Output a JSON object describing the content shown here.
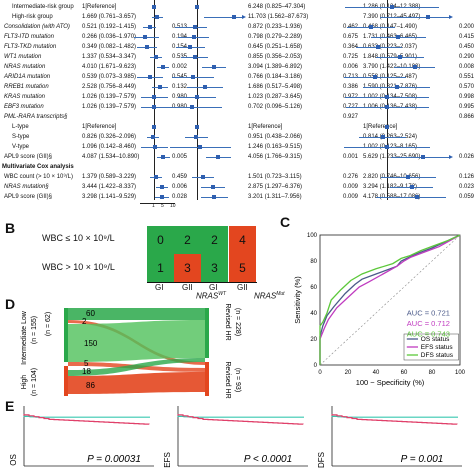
{
  "panel_a": {
    "rows": [
      {
        "label": "Intermediate-risk group",
        "c1": "1[Reference]",
        "p1": "",
        "c2": "6.248 (0.825–47.304)",
        "p2": "",
        "c3": "1.286 (0.134–12.388)",
        "p3": "",
        "style": "ind"
      },
      {
        "label": "High-risk group",
        "c1": "1.669 (0.761–3.657)",
        "p1": "",
        "c2": "11.703 (1.562–87.673)",
        "p2": "",
        "c3": "7.390 (0.712–45.497)",
        "p3": "",
        "style": "ind"
      },
      {
        "label": "Consolidation (with ATO)",
        "c1": "0.521 (0.192–1.415)",
        "p1": "0.513",
        "c2": "0.872 (0.233–1.936)",
        "p2": "0.462",
        "c3": "0.468 (0.147–1.490)",
        "p3": "0.200",
        "style": "it"
      },
      {
        "label": "FLT3-ITD mutation",
        "c1": "0.266 (0.036–1.970)",
        "p1": "0.194",
        "c2": "0.798 (0.279–2.289)",
        "p2": "0.675",
        "c3": "1.731 (0.463–6.465)",
        "p3": "0.415",
        "style": "it"
      },
      {
        "label": "FLT3-TKD mutation",
        "c1": "0.349 (0.082–1.482)",
        "p1": "0.154",
        "c2": "0.645 (0.251–1.658)",
        "p2": "0.364",
        "c3": "0.633 (0.223–2.037)",
        "p3": "0.450",
        "style": "it"
      },
      {
        "label": "WT1 mutation",
        "c1": "1.337 (0.534–3.347)",
        "p1": "0.535",
        "c2": "0.855 (0.356–2.053)",
        "p2": "0.725",
        "c3": "1.848 (0.579–5.901)",
        "p3": "0.290",
        "style": "it"
      },
      {
        "label": "NRAS mutation",
        "c1": "4.010 (1.671–9.623)",
        "p1": "0.002",
        "c2": "3.094 (1.389–6.892)",
        "p2": "0.006",
        "c3": "3.790 (1.422–10.100)",
        "p3": "0.008",
        "style": "it"
      },
      {
        "label": "ARID1A mutation",
        "c1": "0.539 (0.073–3.985)",
        "p1": "0.545",
        "c2": "0.766 (0.184–3.186)",
        "p2": "0.713",
        "c3": "0.558 (0.125–2.487)",
        "p3": "0.551",
        "style": "it"
      },
      {
        "label": "RREB1 mutation",
        "c1": "2.528 (0.756–8.449)",
        "p1": "0.132",
        "c2": "1.686 (0.517–5.498)",
        "p2": "0.386",
        "c3": "1.590 (0.321–7.876)",
        "p3": "0.570",
        "style": "it"
      },
      {
        "label": "KRAS mutation",
        "c1": "1.026 (0.139–7.579)",
        "p1": "0.980",
        "c2": "1.023 (0.287–3.645)",
        "p2": "0.972",
        "c3": "1.002 (0.134–7.508)",
        "p3": "0.998",
        "style": "it"
      },
      {
        "label": "EBF3 mutation",
        "c1": "1.026 (0.139–7.579)",
        "p1": "0.980",
        "c2": "0.702 (0.096–5.126)",
        "p2": "0.727",
        "c3": "1.006 (0.136–7.438)",
        "p3": "0.995",
        "style": "it"
      },
      {
        "label": "PML-RARA transcripts§",
        "c1": "",
        "p1": "",
        "c2": "",
        "p2": "0.927",
        "c3": "",
        "p3": "0.866",
        "style": "it"
      },
      {
        "label": "L-type",
        "c1": "1[Reference]",
        "p1": "",
        "c2": "1[Reference]",
        "p2": "",
        "c3": "1[Reference]",
        "p3": "",
        "style": "ind"
      },
      {
        "label": "S-type",
        "c1": "0.826 (0.326–2.096)",
        "p1": "",
        "c2": "0.951 (0.438–2.066)",
        "p2": "",
        "c3": "0.814 (0.263–2.524)",
        "p3": "",
        "style": "ind"
      },
      {
        "label": "V-type",
        "c1": "1.096 (0.142–8.460)",
        "p1": "",
        "c2": "1.246 (0.163–9.515)",
        "p2": "",
        "c3": "1.002 (0.123–8.165)",
        "p3": "",
        "style": "ind"
      },
      {
        "label": "APL9 score (GII)§",
        "c1": "4.087 (1.534–10.890)",
        "p1": "0.005",
        "c2": "4.056 (1.766–9.315)",
        "p2": "0.001",
        "c3": "5.629 (1.233–25.690)",
        "p3": "0.026",
        "style": ""
      },
      {
        "label": "Multivariate Cox analysis",
        "c1": "",
        "p1": "",
        "c2": "",
        "p2": "",
        "c3": "",
        "p3": "",
        "style": "hdr"
      },
      {
        "label": "WBC count (> 10 × 10⁹/L)",
        "c1": "1.379 (0.589–3.229)",
        "p1": "0.459",
        "c2": "1.501 (0.723–3.115)",
        "p2": "0.276",
        "c3": "2.820 (0.746–10.656)",
        "p3": "0.126",
        "style": ""
      },
      {
        "label": "NRAS mutation§",
        "c1": "3.444 (1.422–8.337)",
        "p1": "0.006",
        "c2": "2.875 (1.297–6.376)",
        "p2": "0.009",
        "c3": "3.294 (1.182–9.172)",
        "p3": "0.023",
        "style": "it"
      },
      {
        "label": "APL9 score (GII)§",
        "c1": "3.298 (1.141–9.529)",
        "p1": "0.028",
        "c2": "3.201 (1.311–7.956)",
        "p2": "0.009",
        "c3": "4.178 (0.588–17.086)",
        "p3": "0.059",
        "style": ""
      }
    ],
    "forest": {
      "scale_ticks": [
        "1",
        "5",
        "10"
      ],
      "col1": [
        [
          1,
          1,
          1
        ],
        [
          1.669,
          0.761,
          3.657
        ],
        [
          0.521,
          0.192,
          1.415
        ],
        [
          0.266,
          0.036,
          1.97
        ],
        [
          0.349,
          0.082,
          1.482
        ],
        [
          1.337,
          0.534,
          3.347
        ],
        [
          4.01,
          1.671,
          9.623
        ],
        [
          0.539,
          0.073,
          3.985
        ],
        [
          2.528,
          0.756,
          8.449
        ],
        [
          1.026,
          0.139,
          7.579
        ],
        [
          1.026,
          0.139,
          7.579
        ],
        null,
        [
          1,
          1,
          1
        ],
        [
          0.826,
          0.326,
          2.096
        ],
        [
          1.096,
          0.142,
          8.46
        ],
        [
          4.087,
          1.534,
          10.89
        ],
        null,
        [
          1.379,
          0.589,
          3.229
        ],
        [
          3.444,
          1.422,
          8.337
        ],
        [
          3.298,
          1.141,
          9.529
        ]
      ],
      "col2": [
        [
          1,
          1,
          1
        ],
        [
          11.703,
          1.562,
          87.673
        ],
        [
          0.872,
          0.233,
          1.936
        ],
        [
          0.798,
          0.279,
          2.289
        ],
        [
          0.645,
          0.251,
          1.658
        ],
        [
          0.855,
          0.356,
          2.053
        ],
        [
          3.094,
          1.389,
          6.892
        ],
        [
          0.766,
          0.184,
          3.186
        ],
        [
          1.686,
          0.517,
          5.498
        ],
        [
          1.023,
          0.287,
          3.645
        ],
        [
          0.702,
          0.096,
          5.126
        ],
        null,
        [
          1,
          1,
          1
        ],
        [
          0.951,
          0.438,
          2.066
        ],
        [
          1.246,
          0.163,
          9.515
        ],
        [
          4.056,
          1.766,
          9.315
        ],
        null,
        [
          1.501,
          0.723,
          3.115
        ],
        [
          2.875,
          1.297,
          6.376
        ],
        [
          3.201,
          1.311,
          7.956
        ]
      ],
      "col3": [
        [
          1.286,
          0.134,
          12.388
        ],
        [
          7.39,
          0.712,
          45.497
        ],
        [
          0.468,
          0.147,
          1.49
        ],
        [
          1.731,
          0.463,
          6.465
        ],
        [
          0.633,
          0.223,
          2.037
        ],
        [
          1.848,
          0.579,
          5.901
        ],
        [
          3.79,
          1.422,
          10.1
        ],
        [
          0.558,
          0.125,
          2.487
        ],
        [
          1.59,
          0.321,
          7.876
        ],
        [
          1.002,
          0.134,
          7.508
        ],
        [
          1.006,
          0.136,
          7.438
        ],
        null,
        [
          1,
          1,
          1
        ],
        [
          0.814,
          0.263,
          2.524
        ],
        [
          1.002,
          0.123,
          8.165
        ],
        [
          5.629,
          1.233,
          25.69
        ],
        null,
        [
          2.82,
          0.746,
          10.656
        ],
        [
          3.294,
          1.182,
          9.172
        ],
        [
          4.178,
          0.588,
          17.086
        ]
      ]
    }
  },
  "panel_b": {
    "letter": "B",
    "row_labels": [
      "WBC ≤ 10 × 10⁹/L",
      "WBC > 10 × 10⁹/L"
    ],
    "grid": [
      [
        "0",
        "2",
        "2",
        "4"
      ],
      [
        "1",
        "3",
        "3",
        "5"
      ]
    ],
    "colors": [
      [
        "#2aa84a",
        "#2aa84a",
        "#2aa84a",
        "#e3461f"
      ],
      [
        "#2aa84a",
        "#e3461f",
        "#2aa84a",
        "#e3461f"
      ]
    ],
    "col_labels": [
      "GI",
      "GII",
      "GI",
      "GII"
    ],
    "group_labels": [
      "NRAS",
      "NRAS"
    ],
    "group_sups": [
      "WT",
      "Mut"
    ]
  },
  "panel_c": {
    "letter": "C",
    "chart_data": {
      "type": "line",
      "xlabel": "100 − Specificity (%)",
      "ylabel": "Sensitivity (%)",
      "xlim": [
        0,
        100
      ],
      "ylim": [
        0,
        100
      ],
      "x_ticks": [
        "0",
        "20",
        "40",
        "60",
        "80",
        "100"
      ],
      "y_ticks": [
        "0",
        "20",
        "40",
        "60",
        "80",
        "100"
      ],
      "annotations": [
        "AUC = 0.721",
        "AUC = 0.712",
        "AUC = 0.743"
      ],
      "legend": "bottom-right",
      "series": [
        {
          "name": "OS status",
          "color": "#4b5a8a",
          "x": [
            0,
            0,
            2,
            5,
            10,
            18,
            25,
            30,
            40,
            55,
            58,
            62,
            70,
            80,
            90,
            100
          ],
          "y": [
            0,
            22,
            30,
            38,
            45,
            55,
            62,
            66,
            70,
            76,
            80,
            82,
            86,
            90,
            95,
            100
          ]
        },
        {
          "name": "EFS status",
          "color": "#c03cc0",
          "x": [
            0,
            0,
            3,
            6,
            12,
            20,
            28,
            35,
            45,
            55,
            60,
            65,
            75,
            85,
            95,
            100
          ],
          "y": [
            0,
            20,
            28,
            35,
            44,
            52,
            60,
            64,
            70,
            76,
            80,
            83,
            87,
            91,
            97,
            100
          ]
        },
        {
          "name": "DFS status",
          "color": "#5cc83a",
          "x": [
            0,
            0,
            2,
            5,
            8,
            15,
            22,
            30,
            40,
            52,
            58,
            64,
            72,
            82,
            92,
            100
          ],
          "y": [
            0,
            30,
            33,
            40,
            50,
            58,
            65,
            70,
            74,
            78,
            82,
            84,
            88,
            92,
            96,
            100
          ]
        }
      ]
    }
  },
  "panel_d": {
    "letter": "D",
    "left_groups": [
      "Intermediate Low",
      "High"
    ],
    "left_counts": [
      "(n = 155)",
      "(n = 62)",
      "(n = 104)"
    ],
    "right_groups": [
      "Revised HR",
      "Revised HR"
    ],
    "right_counts": [
      "(n = 228)",
      "(n = 93)"
    ],
    "flow_numbers": [
      "60",
      "2",
      "150",
      "5",
      "18",
      "86"
    ]
  },
  "panel_e": {
    "letter": "E",
    "ylabels": [
      "OS",
      "EFS",
      "DFS"
    ],
    "pvalues": [
      "P = 0.00031",
      "P < 0.0001",
      "P = 0.001"
    ]
  },
  "colors": {
    "green": "#2aa84a",
    "red": "#e3461f",
    "blue": "#2e5fb0",
    "teal": "#38c8b0",
    "pink": "#e0406a"
  }
}
